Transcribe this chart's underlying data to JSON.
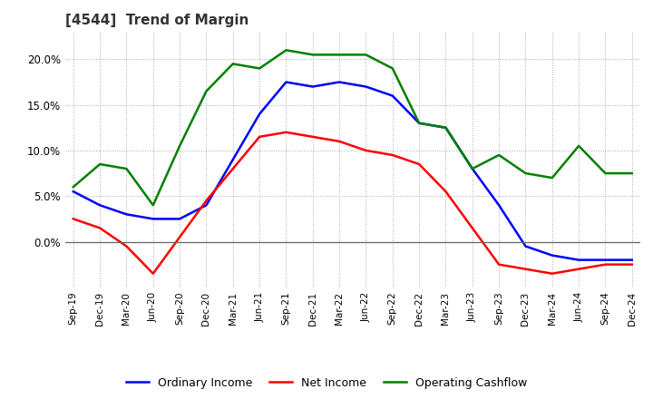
{
  "title": "[4544]  Trend of Margin",
  "x_labels": [
    "Sep-19",
    "Dec-19",
    "Mar-20",
    "Jun-20",
    "Sep-20",
    "Dec-20",
    "Mar-21",
    "Jun-21",
    "Sep-21",
    "Dec-21",
    "Mar-22",
    "Jun-22",
    "Sep-22",
    "Dec-22",
    "Mar-23",
    "Jun-23",
    "Sep-23",
    "Dec-23",
    "Mar-24",
    "Jun-24",
    "Sep-24",
    "Dec-24"
  ],
  "ordinary_income": [
    5.5,
    4.0,
    3.0,
    2.5,
    2.5,
    4.0,
    9.0,
    14.0,
    17.5,
    17.0,
    17.5,
    17.0,
    16.0,
    13.0,
    12.5,
    8.0,
    4.0,
    -0.5,
    -1.5,
    -2.0,
    -2.0,
    -2.0
  ],
  "net_income": [
    2.5,
    1.5,
    -0.5,
    -3.5,
    0.5,
    4.5,
    8.0,
    11.5,
    12.0,
    11.5,
    11.0,
    10.0,
    9.5,
    8.5,
    5.5,
    1.5,
    -2.5,
    -3.0,
    -3.5,
    -3.0,
    -2.5,
    -2.5
  ],
  "operating_cashflow": [
    6.0,
    8.5,
    8.0,
    4.0,
    10.5,
    16.5,
    19.5,
    19.0,
    21.0,
    20.5,
    20.5,
    20.5,
    19.0,
    13.0,
    12.5,
    8.0,
    9.5,
    7.5,
    7.0,
    10.5,
    7.5,
    7.5
  ],
  "ylim": [
    -5,
    23
  ],
  "color_ordinary": "#0000ff",
  "color_net": "#ff0000",
  "color_cashflow": "#008000",
  "legend_labels": [
    "Ordinary Income",
    "Net Income",
    "Operating Cashflow"
  ],
  "background_color": "#ffffff",
  "grid_color": "#aaaaaa"
}
